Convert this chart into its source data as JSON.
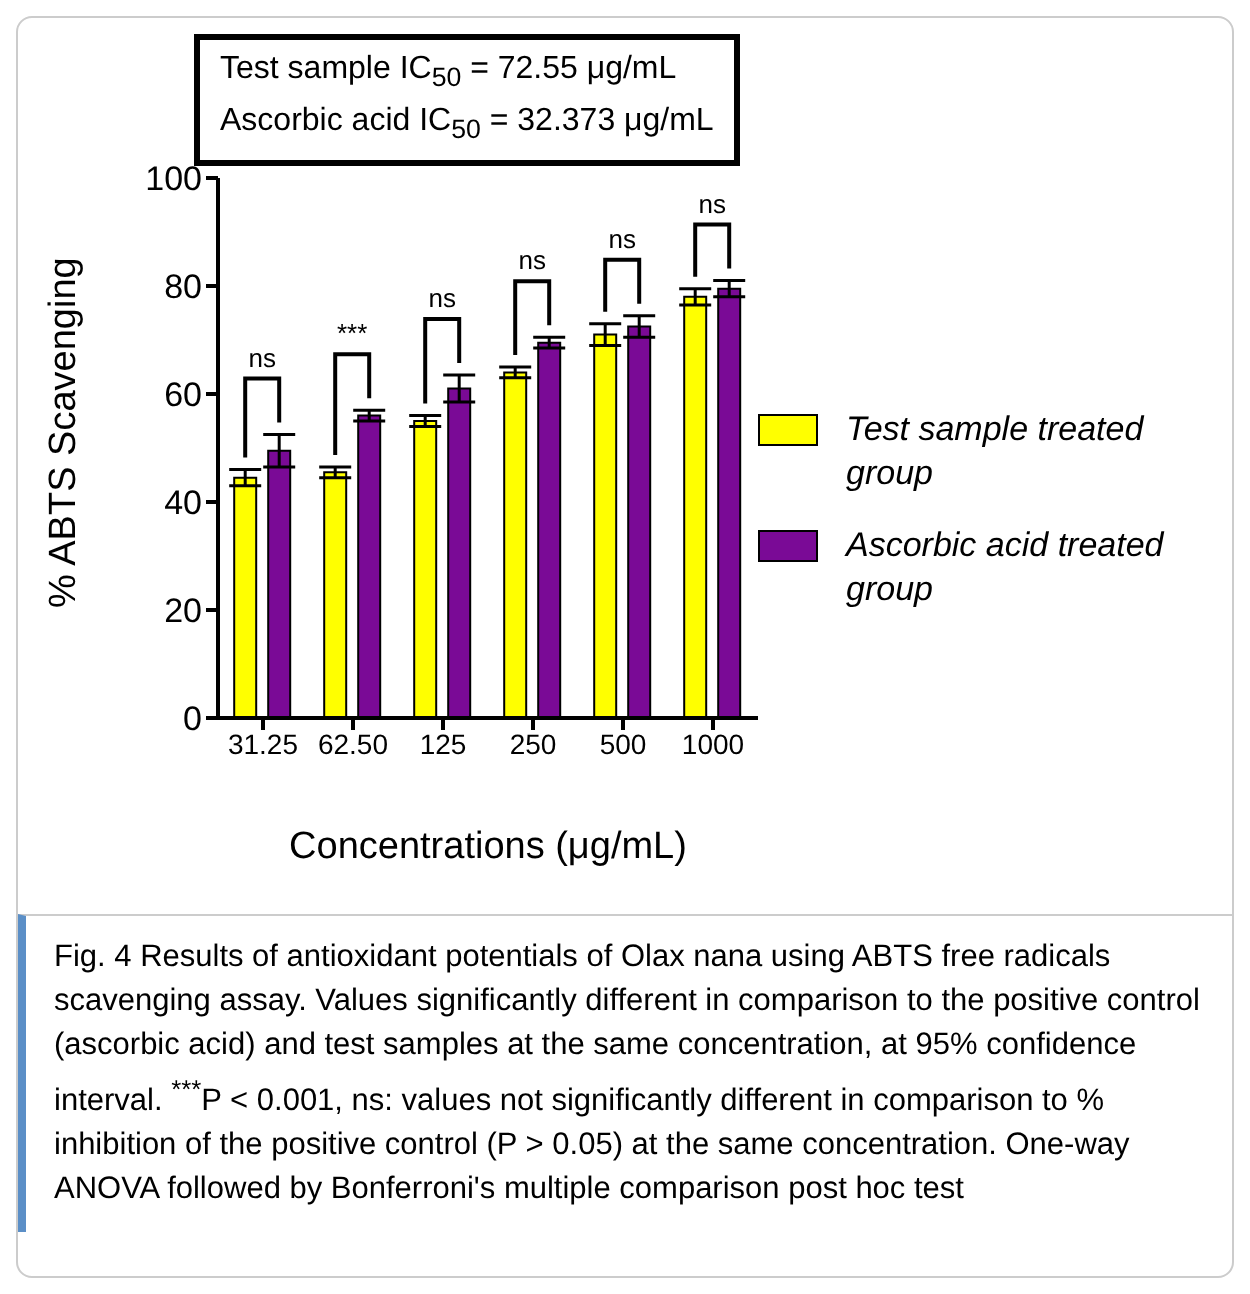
{
  "chart_data": {
    "type": "bar",
    "xlabel": "Concentrations (μg/mL)",
    "ylabel": "% ABTS Scavenging",
    "categories": [
      "31.25",
      "62.50",
      "125",
      "250",
      "500",
      "1000"
    ],
    "series": [
      {
        "name": "Test sample treated group",
        "color": "#ffff00",
        "values": [
          44.5,
          45.5,
          55,
          64,
          71,
          78
        ],
        "errors": [
          1.5,
          1,
          1,
          1,
          2,
          1.5
        ]
      },
      {
        "name": "Ascorbic acid treated group",
        "color": "#7a0a96",
        "values": [
          49.5,
          56,
          61,
          69.5,
          72.5,
          79.5
        ],
        "errors": [
          3,
          1,
          2.5,
          1,
          2,
          1.5
        ]
      }
    ],
    "ylim": [
      0,
      100
    ],
    "yticks": [
      0,
      20,
      40,
      60,
      80,
      100
    ],
    "grid": false,
    "legend": "right",
    "annotations": [
      "Test sample IC$_{50}$ = 72.55 μg/mL",
      "Ascorbic acid IC$_{50}$ = 32.373 μg/mL",
      "Fig. 4 Results of antioxidant potentials of Olax nana using ABTS free radicals scavenging assay. Values significantly different in comparison to the positive control (ascorbic acid) and test samples at the same concentration, at 95% confidence interval. $^{***}$P < 0.001, ns: values not significantly different in comparison to % inhibition of the positive control (P > 0.05) at the same concentration. One-way ANOVA followed by Bonferroni's multiple comparison post hoc test",
      "ns",
      "***",
      "ns",
      "ns",
      "ns",
      "ns"
    ]
  }
}
